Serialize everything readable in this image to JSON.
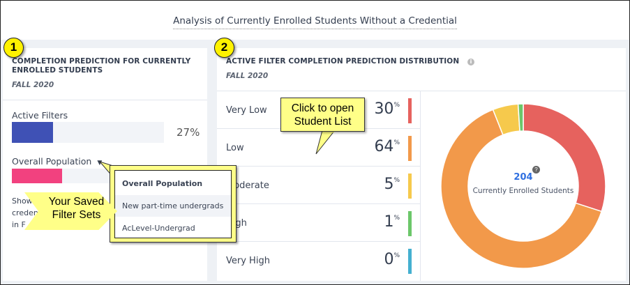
{
  "page_title": "Analysis of Currently Enrolled Students Without a Credential",
  "left_panel": {
    "badge": "1",
    "title": "COMPLETION PREDICTION FOR CURRENTLY ENROLLED STUDENTS",
    "term": "FALL 2020",
    "active_filters": {
      "label": "Active Filters",
      "value": "27%",
      "fraction": 0.27,
      "color": "#3f51b5"
    },
    "overall": {
      "label": "Overall Population",
      "fraction": 0.33,
      "color": "#f2417f"
    },
    "description_fragments": [
      "Show",
      "creden",
      "in F"
    ]
  },
  "dropdown": {
    "items": [
      {
        "label": "Overall Population",
        "selected": true
      },
      {
        "label": "New part-time undergrads",
        "hovered": true
      },
      {
        "label": "AcLevel-Undergrad"
      }
    ]
  },
  "right_panel": {
    "badge": "2",
    "title": "ACTIVE FILTER COMPLETION PREDICTION DISTRIBUTION",
    "info_icon": "info-icon",
    "term": "FALL 2020",
    "rows": [
      {
        "label": "Very Low",
        "value": "30",
        "unit": "%",
        "color": "#e6625e"
      },
      {
        "label": "Low",
        "value": "64",
        "unit": "%",
        "color": "#f2994a"
      },
      {
        "label": "Moderate",
        "value": "5",
        "unit": "%",
        "color": "#f6c94c"
      },
      {
        "label": "High",
        "value": "1",
        "unit": "%",
        "color": "#6cc76a"
      },
      {
        "label": "Very High",
        "value": "0",
        "unit": "%",
        "color": "#44b0d0"
      }
    ],
    "donut": {
      "total": "204",
      "total_label": "Currently Enrolled Students",
      "help_icon": "question-icon"
    }
  },
  "chart_data": {
    "type": "pie",
    "categories": [
      "Very Low",
      "Low",
      "Moderate",
      "High",
      "Very High"
    ],
    "values": [
      30,
      64,
      5,
      1,
      0
    ],
    "colors": [
      "#e6625e",
      "#f2994a",
      "#f6c94c",
      "#6cc76a",
      "#44b0d0"
    ],
    "center_text": "204"
  },
  "callouts": {
    "saved_filters": "Your Saved Filter Sets",
    "student_list": "Click to open Student List"
  }
}
